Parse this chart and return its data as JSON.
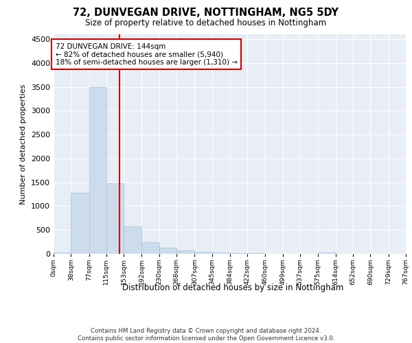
{
  "title1": "72, DUNVEGAN DRIVE, NOTTINGHAM, NG5 5DY",
  "title2": "Size of property relative to detached houses in Nottingham",
  "xlabel": "Distribution of detached houses by size in Nottingham",
  "ylabel": "Number of detached properties",
  "annotation_line1": "72 DUNVEGAN DRIVE: 144sqm",
  "annotation_line2": "← 82% of detached houses are smaller (5,940)",
  "annotation_line3": "18% of semi-detached houses are larger (1,310) →",
  "bar_edges": [
    0,
    38,
    77,
    115,
    153,
    192,
    230,
    268,
    307,
    345,
    384,
    422,
    460,
    499,
    537,
    575,
    614,
    652,
    690,
    729,
    767
  ],
  "bar_heights": [
    25,
    1280,
    3500,
    1480,
    580,
    250,
    130,
    75,
    50,
    30,
    20,
    8,
    3,
    0,
    0,
    25,
    0,
    0,
    0,
    0
  ],
  "bar_color": "#ccdcec",
  "bar_edge_color": "#b0c8dc",
  "vline_x": 144,
  "vline_color": "#cc0000",
  "ylim_max": 4600,
  "yticks": [
    0,
    500,
    1000,
    1500,
    2000,
    2500,
    3000,
    3500,
    4000,
    4500
  ],
  "annotation_box_edge_color": "#cc0000",
  "plot_bg_color": "#e8eef5",
  "grid_color": "#ffffff",
  "footer_text": "Contains HM Land Registry data © Crown copyright and database right 2024.\nContains public sector information licensed under the Open Government Licence v3.0."
}
